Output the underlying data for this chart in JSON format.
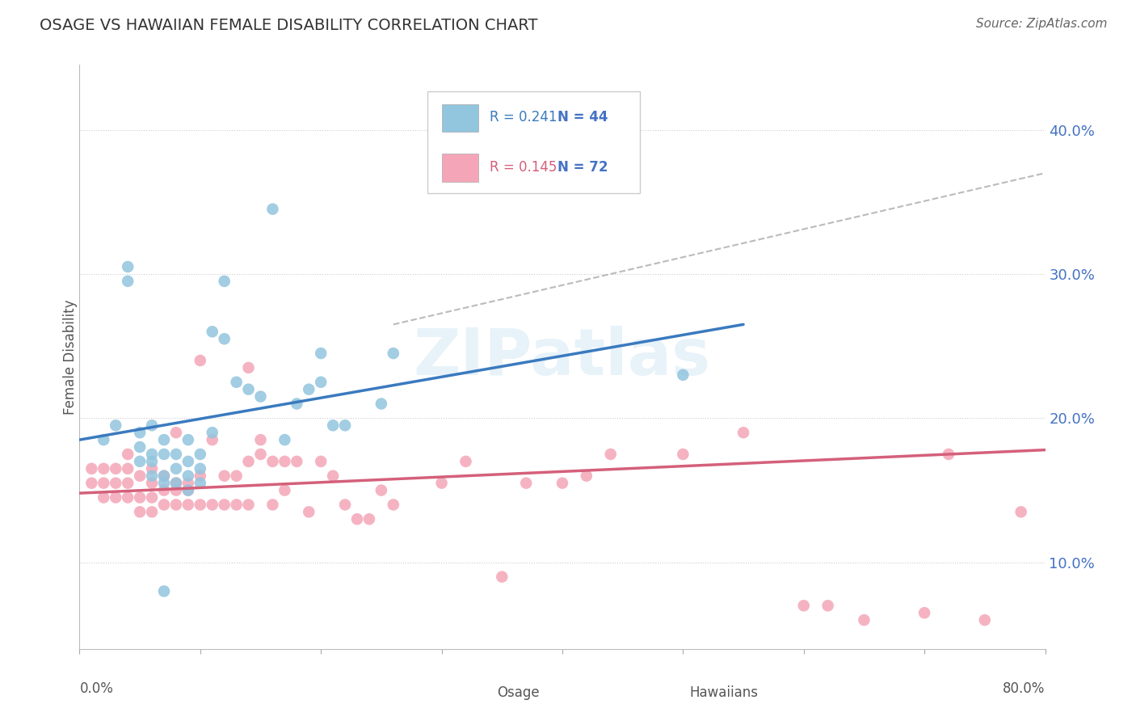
{
  "title": "OSAGE VS HAWAIIAN FEMALE DISABILITY CORRELATION CHART",
  "source": "Source: ZipAtlas.com",
  "ylabel": "Female Disability",
  "ytick_values": [
    0.1,
    0.2,
    0.3,
    0.4
  ],
  "xlim": [
    0.0,
    0.8
  ],
  "ylim": [
    0.04,
    0.445
  ],
  "legend_blue_R": "R = 0.241",
  "legend_blue_N": "N = 44",
  "legend_pink_R": "R = 0.145",
  "legend_pink_N": "N = 72",
  "legend_label_blue": "Osage",
  "legend_label_pink": "Hawaiians",
  "watermark": "ZIPatlas",
  "blue_scatter_color": "#92c5de",
  "pink_scatter_color": "#f4a6b8",
  "line_blue_color": "#3a7abf",
  "line_pink_color": "#d4607a",
  "line_dashed_color": "#aaaaaa",
  "osage_x": [
    0.02,
    0.03,
    0.04,
    0.04,
    0.05,
    0.05,
    0.05,
    0.06,
    0.06,
    0.06,
    0.06,
    0.07,
    0.07,
    0.07,
    0.07,
    0.08,
    0.08,
    0.08,
    0.09,
    0.09,
    0.09,
    0.09,
    0.1,
    0.1,
    0.1,
    0.11,
    0.11,
    0.12,
    0.12,
    0.13,
    0.14,
    0.15,
    0.16,
    0.17,
    0.18,
    0.19,
    0.2,
    0.2,
    0.21,
    0.22,
    0.25,
    0.26,
    0.5,
    0.07
  ],
  "osage_y": [
    0.185,
    0.195,
    0.295,
    0.305,
    0.17,
    0.18,
    0.19,
    0.16,
    0.17,
    0.175,
    0.195,
    0.155,
    0.16,
    0.175,
    0.185,
    0.155,
    0.165,
    0.175,
    0.15,
    0.16,
    0.17,
    0.185,
    0.155,
    0.165,
    0.175,
    0.19,
    0.26,
    0.255,
    0.295,
    0.225,
    0.22,
    0.215,
    0.345,
    0.185,
    0.21,
    0.22,
    0.225,
    0.245,
    0.195,
    0.195,
    0.21,
    0.245,
    0.23,
    0.08
  ],
  "hawaiians_x": [
    0.01,
    0.01,
    0.02,
    0.02,
    0.02,
    0.03,
    0.03,
    0.03,
    0.04,
    0.04,
    0.04,
    0.04,
    0.05,
    0.05,
    0.05,
    0.06,
    0.06,
    0.06,
    0.06,
    0.07,
    0.07,
    0.07,
    0.08,
    0.08,
    0.08,
    0.08,
    0.09,
    0.09,
    0.09,
    0.1,
    0.1,
    0.11,
    0.11,
    0.12,
    0.12,
    0.13,
    0.13,
    0.14,
    0.14,
    0.15,
    0.15,
    0.16,
    0.16,
    0.17,
    0.17,
    0.18,
    0.19,
    0.2,
    0.21,
    0.22,
    0.23,
    0.24,
    0.25,
    0.26,
    0.3,
    0.32,
    0.35,
    0.37,
    0.4,
    0.42,
    0.44,
    0.5,
    0.55,
    0.6,
    0.62,
    0.65,
    0.7,
    0.72,
    0.75,
    0.78,
    0.1,
    0.14
  ],
  "hawaiians_y": [
    0.155,
    0.165,
    0.145,
    0.155,
    0.165,
    0.145,
    0.155,
    0.165,
    0.145,
    0.155,
    0.165,
    0.175,
    0.135,
    0.145,
    0.16,
    0.135,
    0.145,
    0.155,
    0.165,
    0.14,
    0.15,
    0.16,
    0.14,
    0.15,
    0.155,
    0.19,
    0.14,
    0.15,
    0.155,
    0.14,
    0.16,
    0.14,
    0.185,
    0.14,
    0.16,
    0.14,
    0.16,
    0.14,
    0.17,
    0.175,
    0.185,
    0.14,
    0.17,
    0.15,
    0.17,
    0.17,
    0.135,
    0.17,
    0.16,
    0.14,
    0.13,
    0.13,
    0.15,
    0.14,
    0.155,
    0.17,
    0.09,
    0.155,
    0.155,
    0.16,
    0.175,
    0.175,
    0.19,
    0.07,
    0.07,
    0.06,
    0.065,
    0.175,
    0.06,
    0.135,
    0.24,
    0.235
  ],
  "blue_line_x": [
    0.0,
    0.55
  ],
  "blue_line_y_start": 0.185,
  "blue_line_y_end": 0.265,
  "pink_line_x": [
    0.0,
    0.8
  ],
  "pink_line_y_start": 0.148,
  "pink_line_y_end": 0.178,
  "dash_line_x": [
    0.26,
    0.8
  ],
  "dash_line_y_start": 0.265,
  "dash_line_y_end": 0.37
}
